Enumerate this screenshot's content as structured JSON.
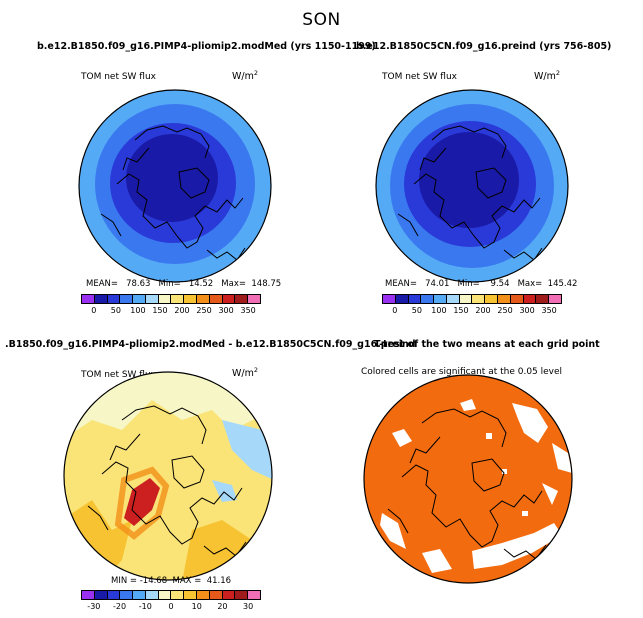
{
  "figure": {
    "season": "SON"
  },
  "panels": [
    {
      "title": "b.e12.B1850.f09_g16.PIMP4-pliomip2.modMed (yrs 1150-1199)",
      "variable": "TOM net SW flux",
      "units": "W/m",
      "units_exp": "2",
      "stats": "MEAN=   78.63   Min=   14.52   Max=  148.75",
      "colorbar": {
        "colors": [
          "#9a30f0",
          "#1a1aa8",
          "#2a3ad8",
          "#3a78f0",
          "#55aaf5",
          "#a6d8fa",
          "#f6f6c6",
          "#fae478",
          "#f7c332",
          "#f39019",
          "#e5591a",
          "#cc2020",
          "#a01b1b",
          "#f06eb5"
        ],
        "labels": [
          "0",
          "50",
          "100",
          "150",
          "200",
          "250",
          "300",
          "350"
        ]
      }
    },
    {
      "title": "b.e12.B1850C5CN.f09_g16.preind (yrs 756-805)",
      "variable": "TOM net SW flux",
      "units": "W/m",
      "units_exp": "2",
      "stats": "MEAN=   74.01   Min=    9.54   Max=  145.42",
      "colorbar": {
        "colors": [
          "#9a30f0",
          "#1a1aa8",
          "#2a3ad8",
          "#3a78f0",
          "#55aaf5",
          "#a6d8fa",
          "#f6f6c6",
          "#fae478",
          "#f7c332",
          "#f39019",
          "#e5591a",
          "#cc2020",
          "#a01b1b",
          "#f06eb5"
        ],
        "labels": [
          "0",
          "50",
          "100",
          "150",
          "200",
          "250",
          "300",
          "350"
        ]
      }
    },
    {
      "title": ".B1850.f09_g16.PIMP4-pliomip2.modMed - b.e12.B1850C5CN.f09_g16.preind",
      "variable": "TOM net SW flux",
      "units": "W/m",
      "units_exp": "2",
      "stats": "MIN = -14.68  MAX =  41.16",
      "colorbar": {
        "colors": [
          "#9a30f0",
          "#1a1aa8",
          "#2a3ad8",
          "#3a78f0",
          "#55aaf5",
          "#a6d8fa",
          "#f6f6c6",
          "#fae478",
          "#f7c332",
          "#f39019",
          "#e5591a",
          "#cc2020",
          "#a01b1b",
          "#f06eb5"
        ],
        "labels": [
          "-30",
          "-20",
          "-10",
          "0",
          "10",
          "20",
          "30"
        ]
      }
    },
    {
      "title": "T-test of the two means at each grid point",
      "note": "Colored cells are significant at the 0.05 level",
      "significant_color": "#f26b0f"
    }
  ],
  "palette": {
    "ring_outer": "#55aaf5",
    "ring_mid": "#3a78f0",
    "core_mid": "#2a3ad8",
    "core": "#1a1aa8",
    "diff_base": "#fae478",
    "diff_light": "#f6f6c6",
    "diff_orange": "#f7c332",
    "diff_blue": "#a6d8fa",
    "diff_red": "#cc2020"
  }
}
